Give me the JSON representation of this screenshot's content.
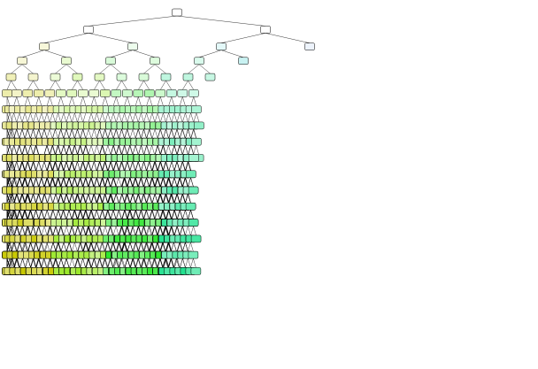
{
  "diagram": {
    "kind": "decision-tree",
    "depth": 16,
    "branching": "binary",
    "node_text": "",
    "edge_color": "#000000",
    "node_border_color": "#000000",
    "class_palette": [
      {
        "name": "",
        "color": "#c8c800"
      },
      {
        "name": "",
        "color": "#9be82a"
      },
      {
        "name": "",
        "color": "#2ee62e"
      },
      {
        "name": "",
        "color": "#18e08a"
      },
      {
        "name": "",
        "color": "#18c8c8"
      },
      {
        "name": "",
        "color": "#3a7be0"
      },
      {
        "name": "",
        "color": "#7a1fe6"
      },
      {
        "name": "",
        "color": "#c71fe0"
      },
      {
        "name": "",
        "color": "#e01f8a"
      },
      {
        "name": "",
        "color": "#e0302a"
      }
    ]
  }
}
